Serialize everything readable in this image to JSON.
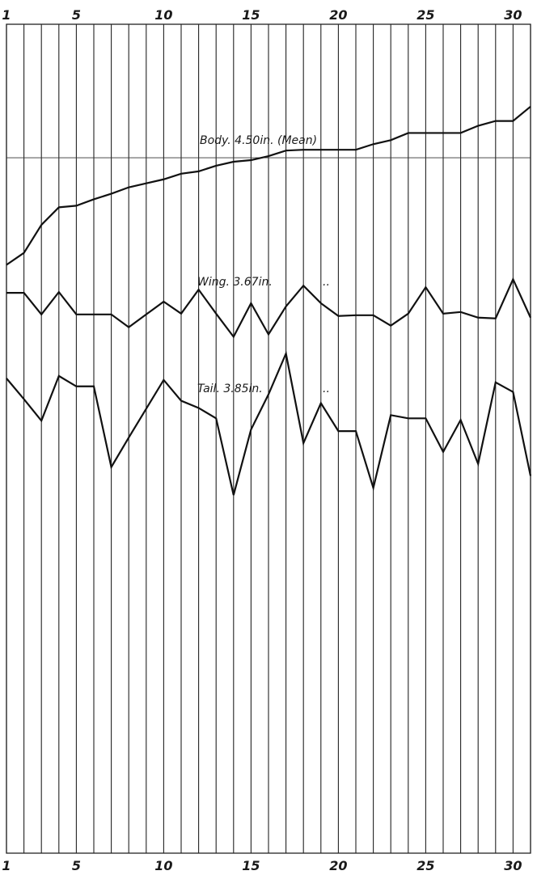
{
  "chart_data": {
    "type": "line",
    "x_ticks_top": [
      "1",
      "5",
      "10",
      "15",
      "20",
      "25",
      "30"
    ],
    "x_ticks_bottom": [
      "1",
      "5",
      "10",
      "15",
      "20",
      "25",
      "30"
    ],
    "x": [
      1,
      2,
      3,
      4,
      5,
      6,
      7,
      8,
      9,
      10,
      11,
      12,
      13,
      14,
      15,
      16,
      17,
      18,
      19,
      20,
      21,
      22,
      23,
      24,
      25,
      26,
      27,
      28,
      29,
      30,
      31
    ],
    "xlim": [
      1,
      31
    ],
    "ylim": [
      0,
      1037
    ],
    "grid": true,
    "annotations": {
      "body": "Body. 4.50in. (Mean)",
      "wing": "Wing. 3.67in.",
      "tail": "Tail. 3.85in.",
      "ditto": ".."
    },
    "mean_line_value": 870,
    "series": [
      {
        "key": "body",
        "values": [
          736,
          751,
          786,
          808,
          810,
          818,
          825,
          833,
          838,
          843,
          850,
          853,
          860,
          865,
          867,
          872,
          879,
          880,
          880,
          880,
          880,
          887,
          892,
          901,
          901,
          901,
          901,
          910,
          916,
          916,
          934
        ]
      },
      {
        "key": "wing",
        "values": [
          701,
          701,
          674,
          702,
          674,
          674,
          674,
          658,
          674,
          690,
          675,
          705,
          675,
          646,
          688,
          649,
          684,
          710,
          688,
          672,
          673,
          673,
          660,
          675,
          708,
          675,
          677,
          670,
          669,
          718,
          670
        ]
      },
      {
        "key": "tail",
        "values": [
          594,
          568,
          541,
          597,
          584,
          584,
          483,
          520,
          556,
          592,
          566,
          557,
          544,
          448,
          530,
          574,
          625,
          513,
          563,
          528,
          528,
          457,
          548,
          544,
          544,
          502,
          542,
          487,
          589,
          577,
          472
        ]
      }
    ]
  }
}
